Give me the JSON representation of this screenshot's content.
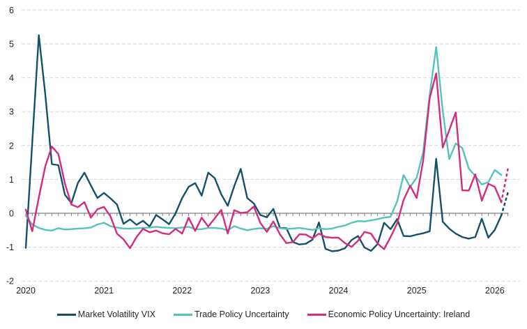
{
  "chart": {
    "title": "",
    "legend_items": [
      {
        "label": "Market Volatility VIX"
      },
      {
        "label": "Trade Policy Uncertainty"
      },
      {
        "label": "Economic Policy Uncertainty: Ireland"
      }
    ]
  },
  "chart_data": {
    "type": "line",
    "title": "",
    "xlabel": "",
    "ylabel": "",
    "frequency": "monthly",
    "x_start": "2020-01",
    "x_end": "2026-03",
    "ylim": [
      -2,
      6
    ],
    "yticks": [
      6,
      5,
      4,
      3,
      2,
      1,
      0,
      -1,
      -2
    ],
    "x_tick_labels": [
      "2020",
      "2021",
      "2022",
      "2023",
      "2024",
      "2025",
      "2026"
    ],
    "grid": "horizontal-dashed",
    "legend_position": "bottom",
    "axis_color": "#7f7f7f",
    "gridline_color": "#d9d9d9",
    "note": "dashed tail segments = latest provisional readings",
    "series": [
      {
        "name": "Market Volatility VIX",
        "color": "#15506a",
        "dashed_from_index": 73,
        "values": [
          -1.02,
          2.1,
          5.26,
          3.5,
          1.45,
          1.42,
          0.55,
          0.3,
          0.9,
          1.2,
          0.82,
          0.45,
          0.6,
          0.44,
          0.26,
          -0.31,
          -0.18,
          -0.34,
          -0.22,
          -0.39,
          -0.05,
          -0.18,
          -0.32,
          0.0,
          0.45,
          0.78,
          0.89,
          0.52,
          1.2,
          1.04,
          0.56,
          0.22,
          0.8,
          1.31,
          0.45,
          0.29,
          -0.05,
          -0.12,
          0.13,
          -0.43,
          -0.44,
          -0.85,
          -0.92,
          -0.9,
          -0.78,
          -0.27,
          -1.05,
          -1.12,
          -1.1,
          -1.03,
          -0.79,
          -0.67,
          -1.01,
          -1.11,
          -0.91,
          -0.28,
          -0.47,
          -0.17,
          -0.67,
          -0.68,
          -0.63,
          -0.59,
          -0.53,
          1.61,
          -0.25,
          -0.45,
          -0.6,
          -0.7,
          -0.75,
          -0.7,
          -0.16,
          -0.72,
          -0.49,
          -0.06,
          0.6
        ]
      },
      {
        "name": "Trade Policy Uncertainty",
        "color": "#55c3bc",
        "dashed_from_index": null,
        "values": [
          -0.07,
          -0.33,
          -0.43,
          -0.49,
          -0.51,
          -0.44,
          -0.48,
          -0.47,
          -0.45,
          -0.44,
          -0.42,
          -0.33,
          -0.28,
          -0.38,
          -0.42,
          -0.45,
          -0.45,
          -0.44,
          -0.43,
          -0.42,
          -0.4,
          -0.42,
          -0.43,
          -0.44,
          -0.42,
          -0.4,
          -0.47,
          -0.47,
          -0.43,
          -0.43,
          -0.45,
          -0.5,
          -0.38,
          -0.45,
          -0.5,
          -0.46,
          -0.44,
          -0.46,
          -0.38,
          -0.44,
          -0.46,
          -0.45,
          -0.43,
          -0.46,
          -0.49,
          -0.44,
          -0.47,
          -0.45,
          -0.4,
          -0.36,
          -0.28,
          -0.23,
          -0.24,
          -0.21,
          -0.17,
          -0.13,
          -0.1,
          0.35,
          1.13,
          0.78,
          1.05,
          1.8,
          3.5,
          4.91,
          3.03,
          1.6,
          2.06,
          1.93,
          1.32,
          1.1,
          0.85,
          0.92,
          1.28,
          1.13,
          null
        ]
      },
      {
        "name": "Economic Policy Uncertainty: Ireland",
        "color": "#d62a7e",
        "dashed_from_index": 73,
        "values": [
          0.11,
          -0.53,
          0.47,
          1.39,
          1.97,
          1.75,
          0.88,
          0.26,
          0.18,
          0.33,
          -0.13,
          0.12,
          0.19,
          -0.09,
          -0.6,
          -0.77,
          -1.03,
          -0.7,
          -0.46,
          -0.56,
          -0.51,
          -0.59,
          -0.62,
          -0.46,
          -0.6,
          -0.13,
          -0.52,
          -0.13,
          -0.39,
          -0.15,
          0.1,
          -0.6,
          0.09,
          0.01,
          0.03,
          0.2,
          -0.28,
          -0.55,
          -0.24,
          -0.62,
          -0.88,
          -0.85,
          -0.62,
          -0.63,
          -0.74,
          -0.6,
          -0.7,
          -0.72,
          -0.72,
          -0.88,
          -0.99,
          -0.81,
          -0.55,
          -0.6,
          -0.89,
          -1.06,
          -0.7,
          -0.3,
          0.4,
          0.81,
          0.45,
          1.55,
          3.4,
          4.13,
          1.94,
          2.45,
          2.98,
          0.68,
          0.67,
          1.15,
          0.37,
          0.87,
          0.78,
          0.33,
          1.3
        ]
      }
    ]
  }
}
